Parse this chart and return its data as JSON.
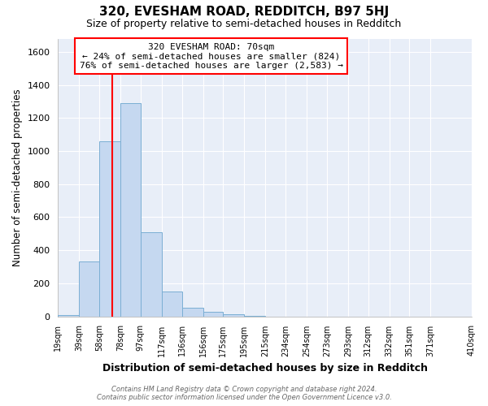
{
  "title": "320, EVESHAM ROAD, REDDITCH, B97 5HJ",
  "subtitle": "Size of property relative to semi-detached houses in Redditch",
  "xlabel": "Distribution of semi-detached houses by size in Redditch",
  "ylabel": "Number of semi-detached properties",
  "bar_heights": [
    10,
    330,
    1060,
    1290,
    510,
    150,
    50,
    25,
    15,
    5,
    0,
    0,
    0,
    0,
    0,
    0,
    0,
    0,
    0
  ],
  "bin_edges": [
    19,
    39,
    58,
    78,
    97,
    117,
    136,
    156,
    175,
    195,
    215,
    234,
    254,
    273,
    293,
    312,
    332,
    351,
    371,
    410
  ],
  "tick_labels": [
    "19sqm",
    "39sqm",
    "58sqm",
    "78sqm",
    "97sqm",
    "117sqm",
    "136sqm",
    "156sqm",
    "175sqm",
    "195sqm",
    "215sqm",
    "234sqm",
    "254sqm",
    "273sqm",
    "293sqm",
    "312sqm",
    "332sqm",
    "351sqm",
    "371sqm",
    "410sqm"
  ],
  "bar_color": "#c5d8f0",
  "bar_edge_color": "#7bafd4",
  "vline_x": 70,
  "vline_color": "red",
  "ylim": [
    0,
    1680
  ],
  "yticks": [
    0,
    200,
    400,
    600,
    800,
    1000,
    1200,
    1400,
    1600
  ],
  "annotation_title": "320 EVESHAM ROAD: 70sqm",
  "annotation_line1": "← 24% of semi-detached houses are smaller (824)",
  "annotation_line2": "76% of semi-detached houses are larger (2,583) →",
  "annotation_box_color": "red",
  "footer_line1": "Contains HM Land Registry data © Crown copyright and database right 2024.",
  "footer_line2": "Contains public sector information licensed under the Open Government Licence v3.0.",
  "plot_bg_color": "#e8eef8",
  "fig_bg_color": "#ffffff",
  "grid_color": "#ffffff",
  "spine_color": "#aaaaaa"
}
